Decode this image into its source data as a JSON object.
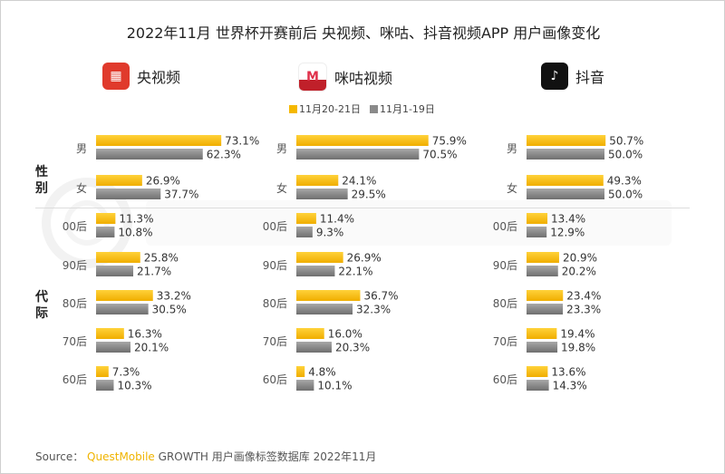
{
  "title": "2022年11月 世界杯开赛前后 央视频、咪咕、抖音视频APP 用户画像变化",
  "watermark": "QUEST MOBILE",
  "groups": {
    "gender": "性别",
    "age": "代际"
  },
  "source": {
    "label": "Source：",
    "brand": "QuestMobile",
    "text": "GROWTH 用户画像标签数据库 2022年11月"
  },
  "colors": {
    "current": "#f5b800",
    "previous": "#8a8a8a"
  },
  "chart_data": {
    "type": "bar",
    "orientation": "horizontal",
    "categories": [
      "男",
      "女",
      "00后",
      "90后",
      "80后",
      "70后",
      "60后"
    ],
    "legend": [
      "11月20-21日",
      "11月1-19日"
    ],
    "legend_placement": "top-center",
    "panels": [
      {
        "app": "央视频",
        "icon": "cctv-video-logo",
        "series": [
          {
            "name": "11月20-21日",
            "values": [
              73.1,
              26.9,
              11.3,
              25.8,
              33.2,
              16.3,
              7.3
            ]
          },
          {
            "name": "11月1-19日",
            "values": [
              62.3,
              37.7,
              10.8,
              21.7,
              30.5,
              20.1,
              10.3
            ]
          }
        ]
      },
      {
        "app": "咪咕视频",
        "icon": "migu-video-logo",
        "series": [
          {
            "name": "11月20-21日",
            "values": [
              75.9,
              24.1,
              11.4,
              26.9,
              36.7,
              16.0,
              4.8
            ]
          },
          {
            "name": "11月1-19日",
            "values": [
              70.5,
              29.5,
              9.3,
              22.1,
              32.3,
              20.3,
              10.1
            ]
          }
        ]
      },
      {
        "app": "抖音",
        "icon": "douyin-logo",
        "series": [
          {
            "name": "11月20-21日",
            "values": [
              50.7,
              49.3,
              13.4,
              20.9,
              23.4,
              19.4,
              13.6
            ]
          },
          {
            "name": "11月1-19日",
            "values": [
              50.0,
              50.0,
              12.9,
              20.2,
              23.3,
              19.8,
              14.3
            ]
          }
        ]
      }
    ]
  }
}
